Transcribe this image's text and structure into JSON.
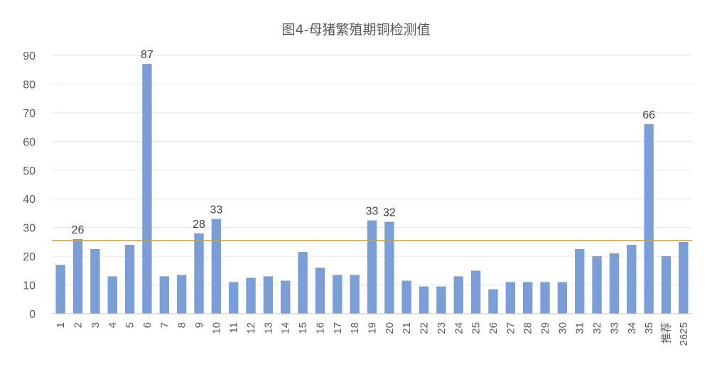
{
  "chart_data": {
    "type": "bar",
    "title": "图4-母猪繁殖期铜检测值",
    "categories": [
      "1",
      "2",
      "3",
      "4",
      "5",
      "6",
      "7",
      "8",
      "9",
      "10",
      "11",
      "12",
      "13",
      "14",
      "15",
      "16",
      "17",
      "18",
      "19",
      "20",
      "21",
      "22",
      "23",
      "24",
      "25",
      "26",
      "27",
      "28",
      "29",
      "30",
      "31",
      "32",
      "33",
      "34",
      "35",
      "推荐",
      "2625"
    ],
    "values": [
      17,
      26,
      22.5,
      13,
      24,
      87,
      13,
      13.5,
      28,
      33,
      11,
      12.5,
      13,
      11.5,
      21.5,
      16,
      13.5,
      13.5,
      32.5,
      32,
      11.5,
      9.5,
      9.5,
      13,
      15,
      8.5,
      11,
      11,
      11,
      11,
      22.5,
      20,
      21,
      24,
      66,
      20,
      25
    ],
    "data_labels": [
      null,
      "26",
      null,
      null,
      null,
      "87",
      null,
      null,
      "28",
      "33",
      null,
      null,
      null,
      null,
      null,
      null,
      null,
      null,
      "33",
      "32",
      null,
      null,
      null,
      null,
      null,
      null,
      null,
      null,
      null,
      null,
      null,
      null,
      null,
      null,
      "66",
      null,
      null
    ],
    "yticks": [
      "0",
      "10",
      "20",
      "30",
      "40",
      "50",
      "60",
      "70",
      "80",
      "90"
    ],
    "ylim": [
      0,
      90
    ],
    "reference_line": 25.5,
    "xlabel": "",
    "ylabel": "",
    "grid": true,
    "colors": {
      "bar": "#7b9ed6",
      "reference_line": "#c8a04a",
      "grid": "#e6e6e6",
      "text": "#595959"
    }
  }
}
